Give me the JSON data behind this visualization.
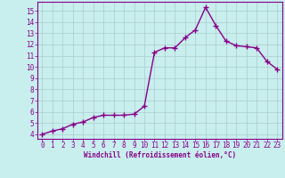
{
  "x": [
    0,
    1,
    2,
    3,
    4,
    5,
    6,
    7,
    8,
    9,
    10,
    11,
    12,
    13,
    14,
    15,
    16,
    17,
    18,
    19,
    20,
    21,
    22,
    23
  ],
  "y": [
    4.0,
    4.3,
    4.5,
    4.9,
    5.1,
    5.5,
    5.7,
    5.7,
    5.7,
    5.8,
    6.5,
    11.3,
    11.7,
    11.7,
    12.6,
    13.3,
    15.3,
    13.7,
    12.3,
    11.9,
    11.8,
    11.7,
    10.5,
    9.8
  ],
  "line_color": "#880088",
  "marker": "+",
  "marker_size": 4,
  "marker_lw": 1.0,
  "line_width": 1.0,
  "bg_color": "#c8eeee",
  "grid_color": "#aacccc",
  "tick_color": "#880088",
  "label_color": "#880088",
  "xlabel": "Windchill (Refroidissement éolien,°C)",
  "ylim_min": 3.6,
  "ylim_max": 15.8,
  "xlim_min": -0.5,
  "xlim_max": 23.5,
  "yticks": [
    4,
    5,
    6,
    7,
    8,
    9,
    10,
    11,
    12,
    13,
    14,
    15
  ],
  "xticks": [
    0,
    1,
    2,
    3,
    4,
    5,
    6,
    7,
    8,
    9,
    10,
    11,
    12,
    13,
    14,
    15,
    16,
    17,
    18,
    19,
    20,
    21,
    22,
    23
  ],
  "tick_fontsize": 5.5,
  "xlabel_fontsize": 5.5,
  "spine_color": "#880088"
}
